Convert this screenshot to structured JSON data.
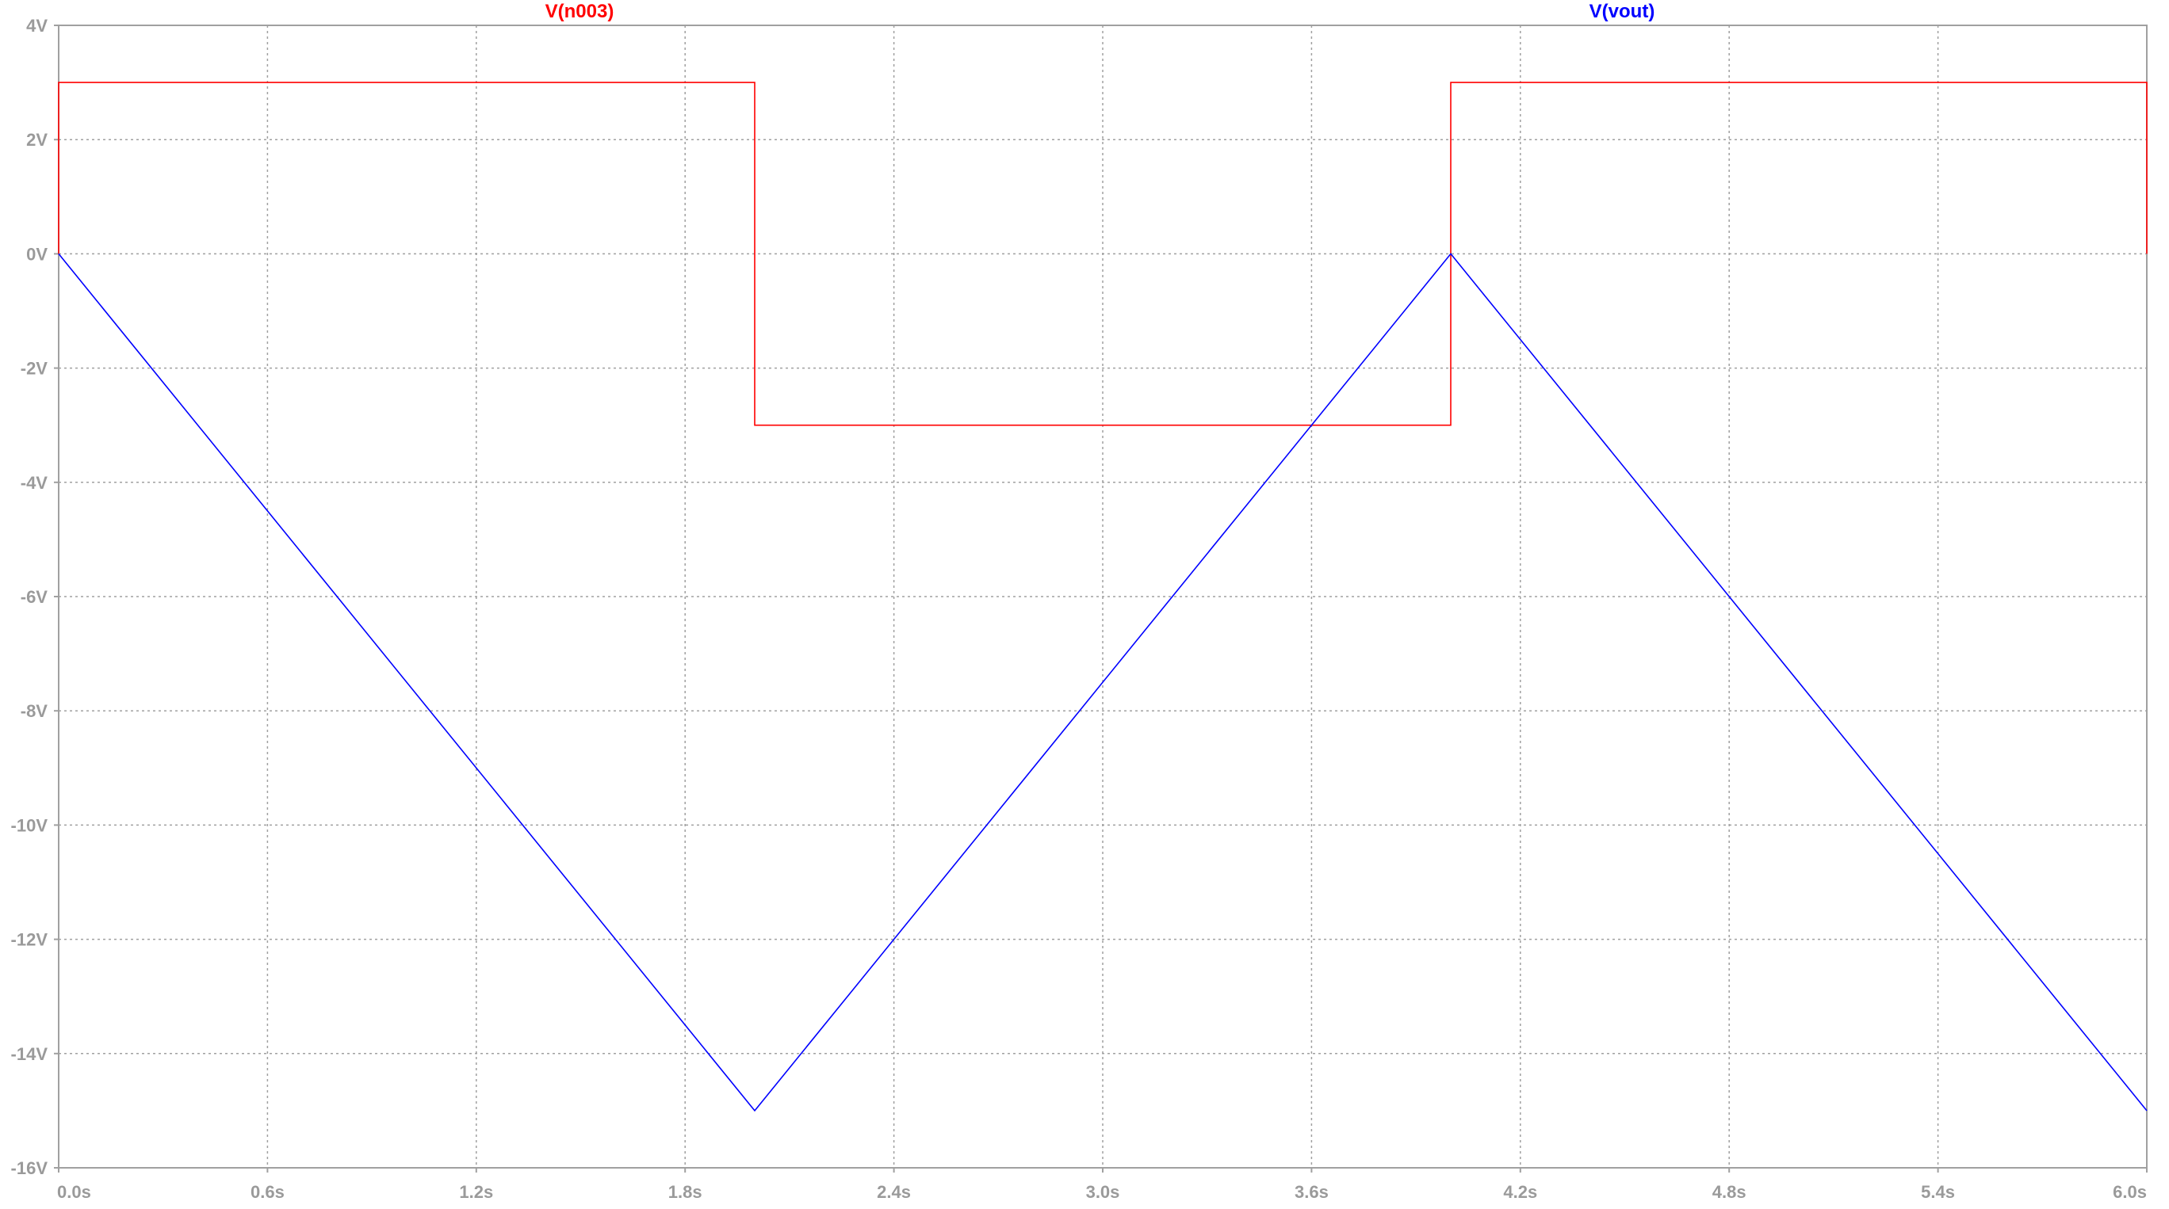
{
  "chart_data": {
    "type": "line",
    "x_ticks": [
      "0.0s",
      "0.6s",
      "1.2s",
      "1.8s",
      "2.4s",
      "3.0s",
      "3.6s",
      "4.2s",
      "4.8s",
      "5.4s",
      "6.0s"
    ],
    "y_ticks": [
      "4V",
      "2V",
      "0V",
      "-2V",
      "-4V",
      "-6V",
      "-8V",
      "-10V",
      "-12V",
      "-14V",
      "-16V"
    ],
    "xlim": [
      0,
      6
    ],
    "ylim": [
      -16,
      4
    ],
    "grid": true,
    "series": [
      {
        "name": "V(n003)",
        "color": "#ff0000",
        "x": [
          0,
          0,
          2,
          2,
          4,
          4,
          6,
          6
        ],
        "y": [
          0,
          3,
          3,
          -3,
          -3,
          3,
          3,
          0
        ]
      },
      {
        "name": "V(vout)",
        "color": "#0000ff",
        "x": [
          0,
          2,
          4,
          6
        ],
        "y": [
          0,
          -15,
          0,
          -15
        ]
      }
    ],
    "colors": {
      "grid": "#a0a0a0",
      "axis": "#a0a0a0",
      "tick_text": "#9a9a9a"
    }
  }
}
